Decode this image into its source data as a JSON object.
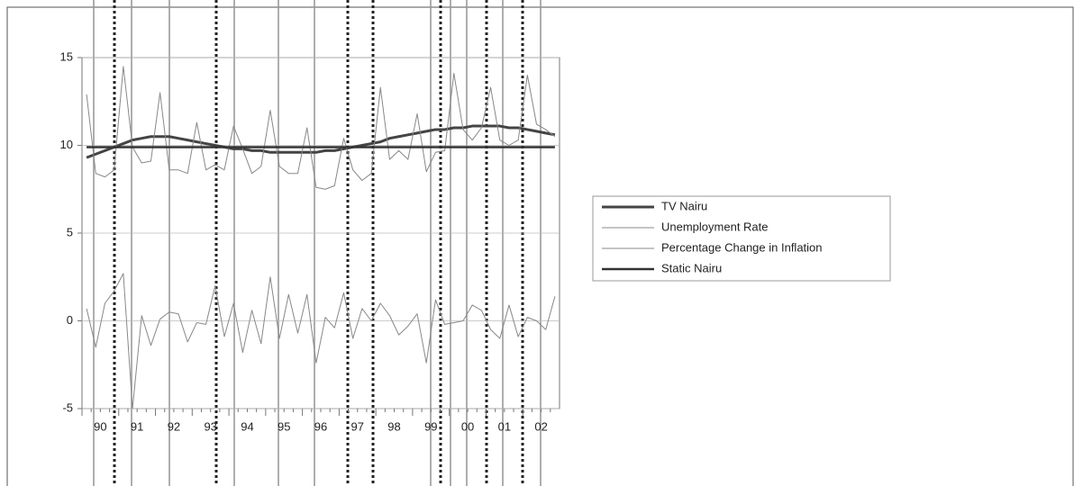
{
  "chart_data": {
    "type": "line",
    "categories": [
      "90",
      null,
      null,
      null,
      "91",
      null,
      null,
      null,
      "92",
      null,
      null,
      null,
      "93",
      null,
      null,
      null,
      "94",
      null,
      null,
      null,
      "95",
      null,
      null,
      null,
      "96",
      null,
      null,
      null,
      "97",
      null,
      null,
      null,
      "98",
      null,
      null,
      null,
      "99",
      null,
      null,
      null,
      "00",
      null,
      null,
      null,
      "01",
      null,
      null,
      null,
      "02",
      null,
      null,
      null
    ],
    "ylim": [
      -5,
      15
    ],
    "yticks": [
      -5,
      0,
      5,
      10,
      15
    ],
    "grid": true,
    "series": [
      {
        "name": "TV Nairu",
        "color": "#444444",
        "width": 3,
        "values": [
          9.3,
          9.5,
          9.7,
          9.9,
          10.1,
          10.3,
          10.4,
          10.5,
          10.5,
          10.5,
          10.4,
          10.3,
          10.2,
          10.1,
          10.0,
          9.9,
          9.8,
          9.8,
          9.7,
          9.7,
          9.6,
          9.6,
          9.6,
          9.6,
          9.6,
          9.6,
          9.7,
          9.7,
          9.8,
          9.9,
          10.0,
          10.1,
          10.2,
          10.4,
          10.5,
          10.6,
          10.7,
          10.8,
          10.9,
          10.9,
          11.0,
          11.0,
          11.1,
          11.1,
          11.1,
          11.1,
          11.0,
          11.0,
          10.9,
          10.8,
          10.7,
          10.6
        ]
      },
      {
        "name": "Unemployment Rate",
        "color": "#888888",
        "width": 1,
        "values": [
          12.9,
          8.4,
          8.2,
          8.6,
          14.5,
          9.9,
          9.0,
          9.1,
          13.0,
          8.6,
          8.6,
          8.4,
          11.3,
          8.6,
          8.9,
          8.6,
          11.1,
          9.8,
          8.4,
          8.8,
          12.0,
          8.8,
          8.4,
          8.4,
          11.0,
          7.6,
          7.5,
          7.7,
          10.4,
          8.6,
          8.0,
          8.4,
          13.3,
          9.2,
          9.7,
          9.2,
          11.8,
          8.5,
          9.6,
          9.7,
          14.1,
          10.9,
          10.3,
          11.0,
          13.3,
          10.3,
          10.0,
          10.3,
          14.0,
          11.2,
          10.9,
          10.5
        ]
      },
      {
        "name": "Percentage Change in Inflation",
        "color": "#888888",
        "width": 1,
        "values": [
          0.7,
          -1.5,
          1.0,
          1.7,
          2.7,
          -5.0,
          0.3,
          -1.4,
          0.1,
          0.5,
          0.4,
          -1.2,
          -0.1,
          -0.2,
          2.0,
          -0.9,
          1.0,
          -1.8,
          0.6,
          -1.3,
          2.5,
          -1.0,
          1.5,
          -0.7,
          1.5,
          -2.4,
          0.2,
          -0.4,
          1.6,
          -1.0,
          0.7,
          0.0,
          1.0,
          0.3,
          -0.8,
          -0.3,
          0.4,
          -2.4,
          1.2,
          -0.2,
          -0.1,
          0.0,
          0.9,
          0.6,
          -0.5,
          -1.0,
          0.9,
          -0.9,
          0.2,
          0.0,
          -0.5,
          1.4
        ]
      },
      {
        "name": "Static Nairu",
        "color": "#333333",
        "width": 2.5,
        "values": [
          9.9,
          9.9,
          9.9,
          9.9,
          9.9,
          9.9,
          9.9,
          9.9,
          9.9,
          9.9,
          9.9,
          9.9,
          9.9,
          9.9,
          9.9,
          9.9,
          9.9,
          9.9,
          9.9,
          9.9,
          9.9,
          9.9,
          9.9,
          9.9,
          9.9,
          9.9,
          9.9,
          9.9,
          9.9,
          9.9,
          9.9,
          9.9,
          9.9,
          9.9,
          9.9,
          9.9,
          9.9,
          9.9,
          9.9,
          9.9,
          9.9,
          9.9,
          9.9,
          9.9,
          9.9,
          9.9,
          9.9,
          9.9,
          9.9,
          9.9,
          9.9,
          9.9
        ]
      }
    ]
  }
}
